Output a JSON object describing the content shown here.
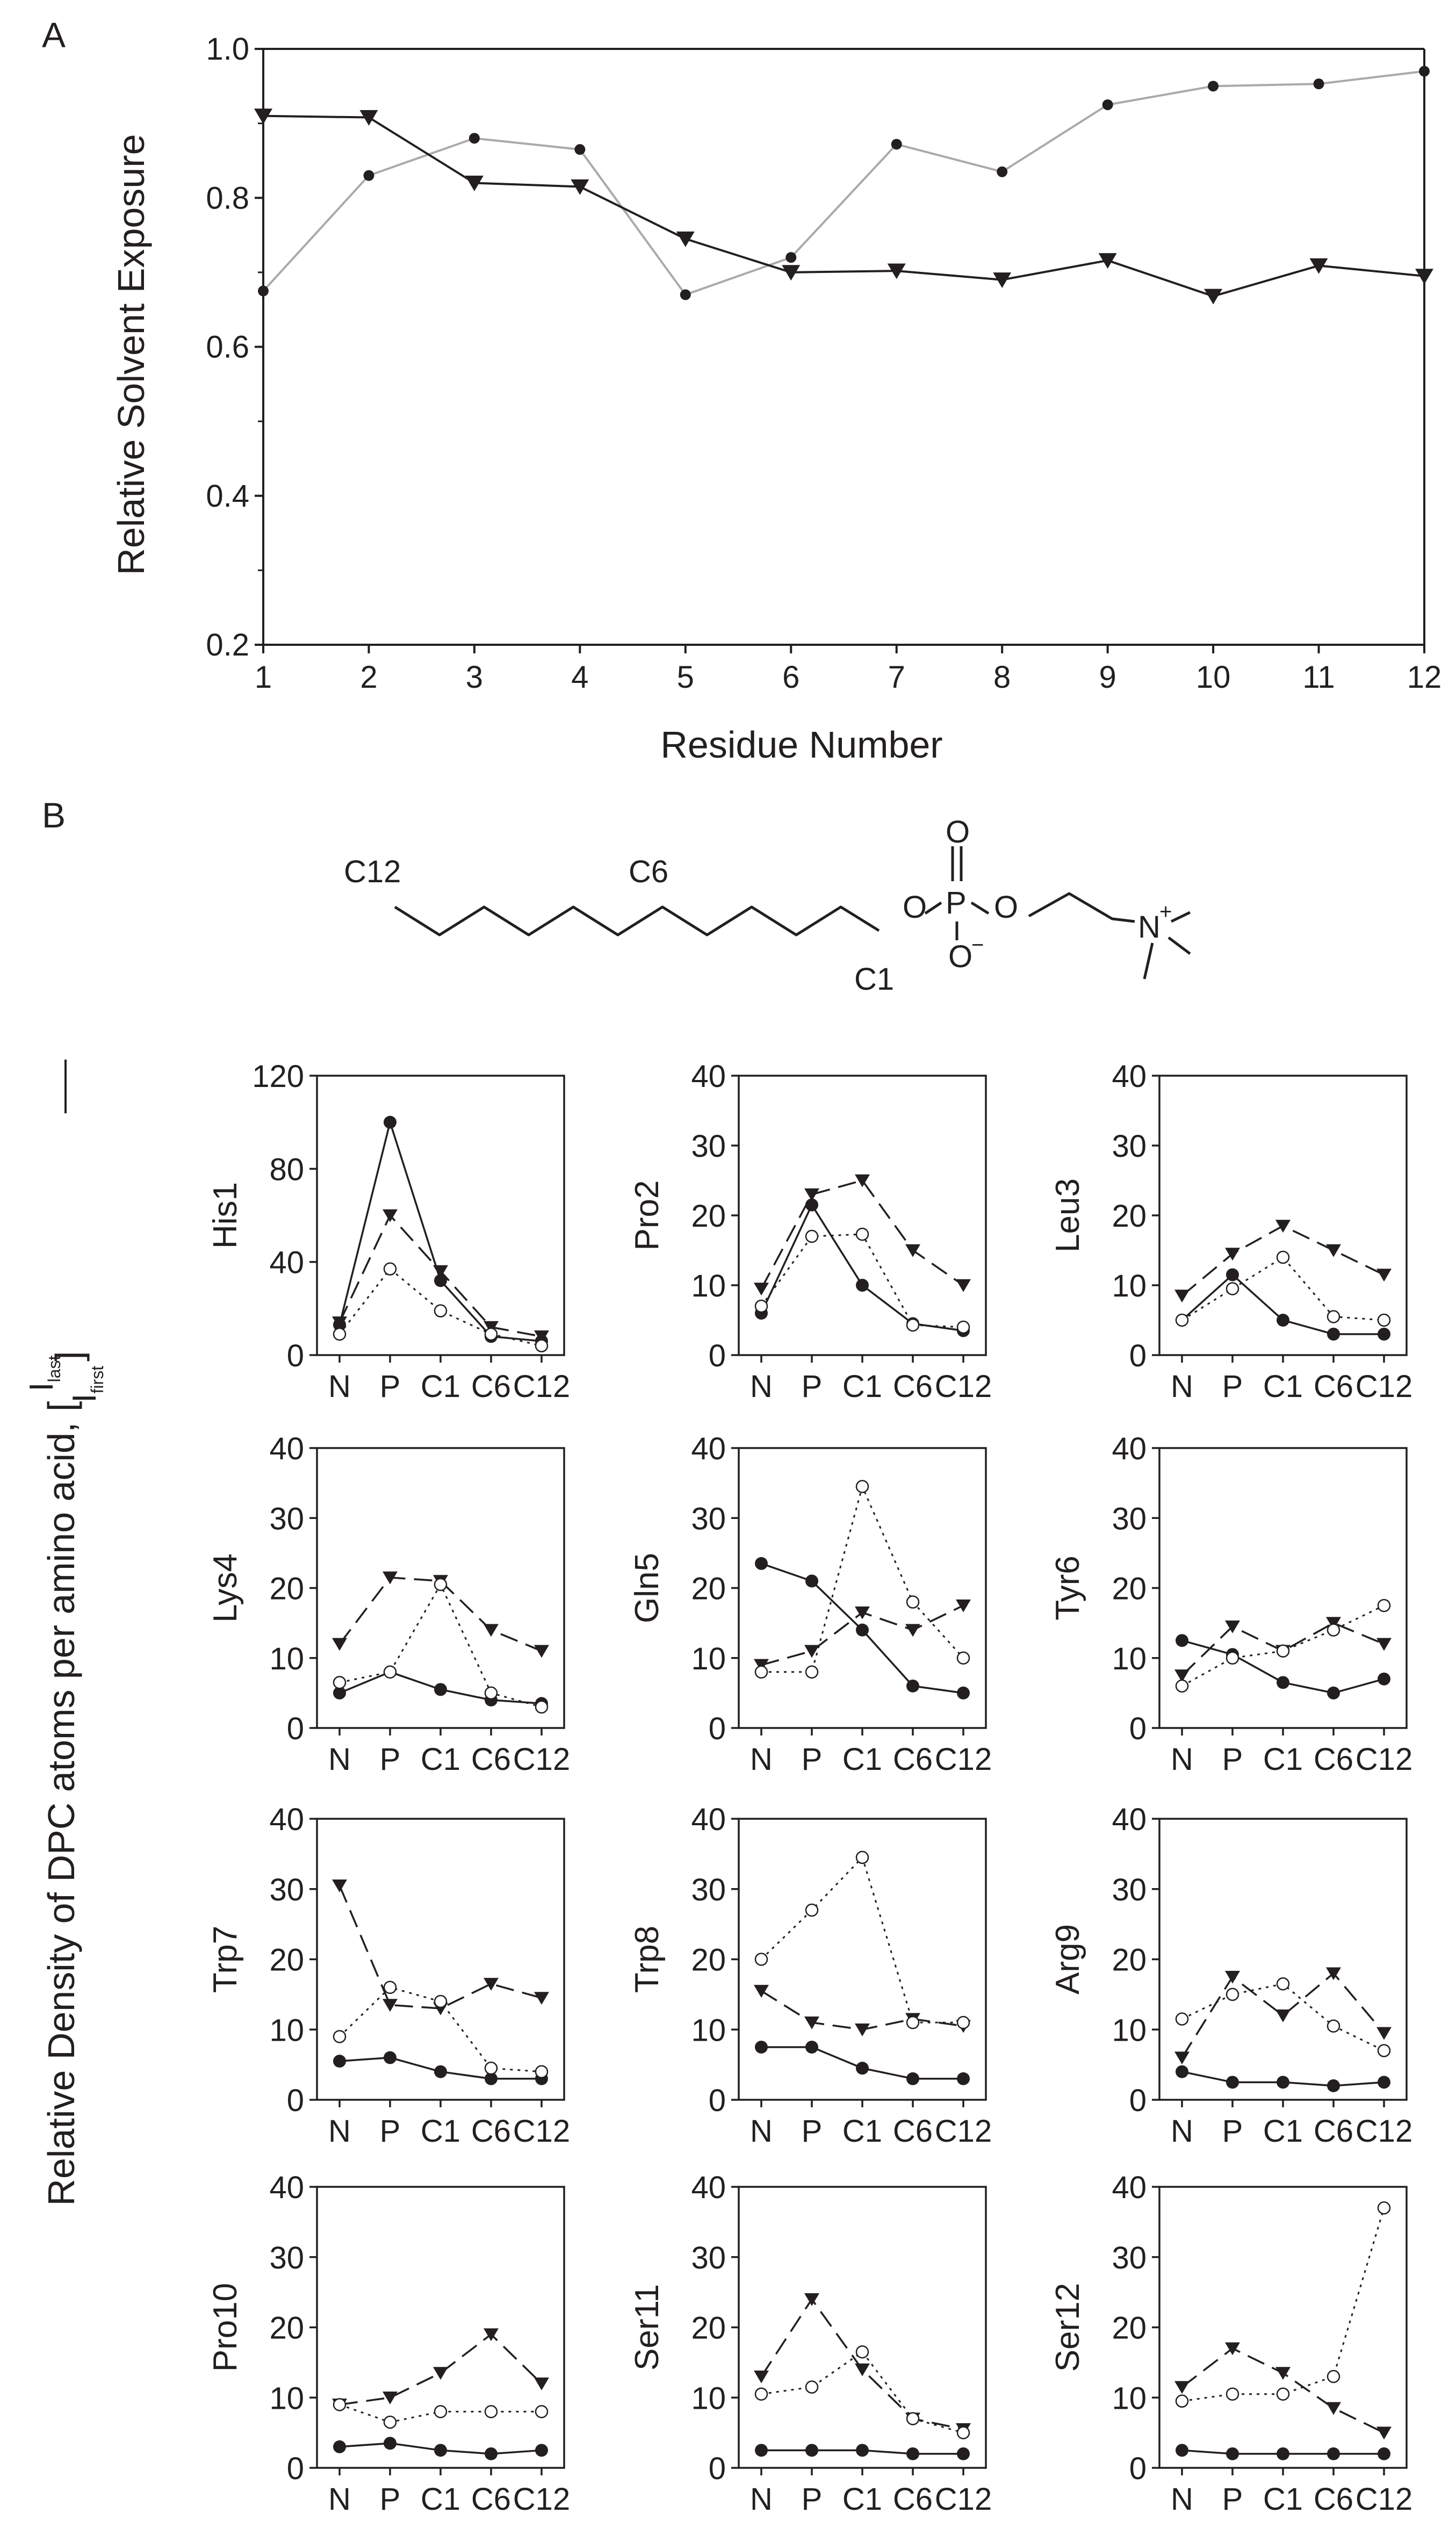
{
  "panel_a": {
    "label": "A",
    "chart_data": {
      "type": "line",
      "title": "",
      "xlabel": "Residue Number",
      "ylabel": "Relative Solvent Exposure",
      "xlim": [
        1,
        12
      ],
      "ylim": [
        0.2,
        1.0
      ],
      "yticks": [
        0.2,
        0.4,
        0.6,
        0.8,
        1.0
      ],
      "ytick_labels": [
        "0.2",
        "0.4",
        "0.6",
        "0.8",
        "1.0"
      ],
      "x": [
        1,
        2,
        3,
        4,
        5,
        6,
        7,
        8,
        9,
        10,
        11,
        12
      ],
      "x_labels": [
        "1",
        "2",
        "3",
        "4",
        "5",
        "6",
        "7",
        "8",
        "9",
        "10",
        "11",
        "12"
      ],
      "series": [
        {
          "name": "gray circles",
          "marker": "circle",
          "color": "#aaaaaa",
          "values": [
            0.675,
            0.83,
            0.88,
            0.865,
            0.67,
            0.72,
            0.872,
            0.835,
            0.925,
            0.95,
            0.953,
            0.97
          ]
        },
        {
          "name": "black triangles",
          "marker": "triangle",
          "color": "#231f20",
          "values": [
            0.91,
            0.908,
            0.82,
            0.815,
            0.745,
            0.7,
            0.702,
            0.69,
            0.716,
            0.668,
            0.709,
            0.695
          ]
        }
      ]
    }
  },
  "panel_b": {
    "label": "B",
    "molecule": {
      "labels": {
        "c12": "C12",
        "c6": "C6",
        "c1": "C1",
        "o": "O",
        "p": "P",
        "n": "N",
        "plus": "+",
        "minus": "−"
      }
    },
    "y_axis_label": "Relative Density of DPC atoms per amino acid, [",
    "fraction": {
      "numerator_base": "I",
      "numerator_sub": "last",
      "denominator_base": "I",
      "denominator_sub": "first",
      "close": "]"
    },
    "chart_data": [
      {
        "type": "line",
        "title": "His1",
        "categories": [
          "N",
          "P",
          "C1",
          "C6",
          "C12"
        ],
        "ylim": [
          0,
          120
        ],
        "ytick_labels": [
          "0",
          "40",
          "80",
          "120"
        ],
        "series": [
          {
            "name": "filled circles",
            "marker": "filled-circle",
            "line": "solid",
            "values": [
              13,
              100,
              32,
              8,
              6
            ]
          },
          {
            "name": "triangles",
            "marker": "triangle",
            "line": "dashed",
            "values": [
              14,
              60,
              36,
              12,
              8
            ]
          },
          {
            "name": "open circles",
            "marker": "open-circle",
            "line": "dotted",
            "values": [
              9,
              37,
              19,
              9,
              4
            ]
          }
        ]
      },
      {
        "type": "line",
        "title": "Pro2",
        "categories": [
          "N",
          "P",
          "C1",
          "C6",
          "C12"
        ],
        "ylim": [
          0,
          40
        ],
        "ytick_labels": [
          "0",
          "10",
          "20",
          "30",
          "40"
        ],
        "series": [
          {
            "name": "filled circles",
            "marker": "filled-circle",
            "line": "solid",
            "values": [
              6,
              21.5,
              10,
              4.5,
              3.5
            ]
          },
          {
            "name": "triangles",
            "marker": "triangle",
            "line": "dashed",
            "values": [
              9.5,
              23,
              25,
              15,
              10
            ]
          },
          {
            "name": "open circles",
            "marker": "open-circle",
            "line": "dotted",
            "values": [
              7,
              17,
              17.3,
              4.3,
              4
            ]
          }
        ]
      },
      {
        "type": "line",
        "title": "Leu3",
        "categories": [
          "N",
          "P",
          "C1",
          "C6",
          "C12"
        ],
        "ylim": [
          0,
          40
        ],
        "ytick_labels": [
          "0",
          "10",
          "20",
          "30",
          "40"
        ],
        "series": [
          {
            "name": "filled circles",
            "marker": "filled-circle",
            "line": "solid",
            "values": [
              5,
              11.5,
              5,
              3,
              3
            ]
          },
          {
            "name": "triangles",
            "marker": "triangle",
            "line": "dashed",
            "values": [
              8.5,
              14.5,
              18.5,
              15,
              11.5
            ]
          },
          {
            "name": "open circles",
            "marker": "open-circle",
            "line": "dotted",
            "values": [
              5,
              9.5,
              14,
              5.5,
              5
            ]
          }
        ]
      },
      {
        "type": "line",
        "title": "Lys4",
        "categories": [
          "N",
          "P",
          "C1",
          "C6",
          "C12"
        ],
        "ylim": [
          0,
          40
        ],
        "ytick_labels": [
          "0",
          "10",
          "20",
          "30",
          "40"
        ],
        "series": [
          {
            "name": "filled circles",
            "marker": "filled-circle",
            "line": "solid",
            "values": [
              5,
              8,
              5.5,
              4,
              3.5
            ]
          },
          {
            "name": "triangles",
            "marker": "triangle",
            "line": "dashed",
            "values": [
              12,
              21.5,
              21,
              14,
              11
            ]
          },
          {
            "name": "open circles",
            "marker": "open-circle",
            "line": "dotted",
            "values": [
              6.5,
              8,
              20.5,
              5,
              3
            ]
          }
        ]
      },
      {
        "type": "line",
        "title": "Gln5",
        "categories": [
          "N",
          "P",
          "C1",
          "C6",
          "C12"
        ],
        "ylim": [
          0,
          40
        ],
        "ytick_labels": [
          "0",
          "10",
          "20",
          "30",
          "40"
        ],
        "series": [
          {
            "name": "filled circles",
            "marker": "filled-circle",
            "line": "solid",
            "values": [
              23.5,
              21,
              14,
              6,
              5
            ]
          },
          {
            "name": "triangles",
            "marker": "triangle",
            "line": "dashed",
            "values": [
              9,
              11,
              16.5,
              14,
              17.5
            ]
          },
          {
            "name": "open circles",
            "marker": "open-circle",
            "line": "dotted",
            "values": [
              8,
              8,
              34.5,
              18,
              10
            ]
          }
        ]
      },
      {
        "type": "line",
        "title": "Tyr6",
        "categories": [
          "N",
          "P",
          "C1",
          "C6",
          "C12"
        ],
        "ylim": [
          0,
          40
        ],
        "ytick_labels": [
          "0",
          "10",
          "20",
          "30",
          "40"
        ],
        "series": [
          {
            "name": "filled circles",
            "marker": "filled-circle",
            "line": "solid",
            "values": [
              12.5,
              10.5,
              6.5,
              5,
              7
            ]
          },
          {
            "name": "triangles",
            "marker": "triangle",
            "line": "dashed",
            "values": [
              7.5,
              14.5,
              11,
              15,
              12
            ]
          },
          {
            "name": "open circles",
            "marker": "open-circle",
            "line": "dotted",
            "values": [
              6,
              10,
              11,
              14,
              17.5
            ]
          }
        ]
      },
      {
        "type": "line",
        "title": "Trp7",
        "categories": [
          "N",
          "P",
          "C1",
          "C6",
          "C12"
        ],
        "ylim": [
          0,
          40
        ],
        "ytick_labels": [
          "0",
          "10",
          "20",
          "30",
          "40"
        ],
        "series": [
          {
            "name": "filled circles",
            "marker": "filled-circle",
            "line": "solid",
            "values": [
              5.5,
              6,
              4,
              3,
              3
            ]
          },
          {
            "name": "triangles",
            "marker": "triangle",
            "line": "dashed",
            "values": [
              30.5,
              13.5,
              13,
              16.5,
              14.5
            ]
          },
          {
            "name": "open circles",
            "marker": "open-circle",
            "line": "dotted",
            "values": [
              9,
              16,
              14,
              4.5,
              4
            ]
          }
        ]
      },
      {
        "type": "line",
        "title": "Trp8",
        "categories": [
          "N",
          "P",
          "C1",
          "C6",
          "C12"
        ],
        "ylim": [
          0,
          40
        ],
        "ytick_labels": [
          "0",
          "10",
          "20",
          "30",
          "40"
        ],
        "series": [
          {
            "name": "filled circles",
            "marker": "filled-circle",
            "line": "solid",
            "values": [
              7.5,
              7.5,
              4.5,
              3,
              3
            ]
          },
          {
            "name": "triangles",
            "marker": "triangle",
            "line": "dashed",
            "values": [
              15.5,
              11,
              10,
              11.5,
              10.5
            ]
          },
          {
            "name": "open circles",
            "marker": "open-circle",
            "line": "dotted",
            "values": [
              20,
              27,
              34.5,
              11,
              11
            ]
          }
        ]
      },
      {
        "type": "line",
        "title": "Arg9",
        "categories": [
          "N",
          "P",
          "C1",
          "C6",
          "C12"
        ],
        "ylim": [
          0,
          40
        ],
        "ytick_labels": [
          "0",
          "10",
          "20",
          "30",
          "40"
        ],
        "series": [
          {
            "name": "filled circles",
            "marker": "filled-circle",
            "line": "solid",
            "values": [
              4,
              2.5,
              2.5,
              2,
              2.5
            ]
          },
          {
            "name": "triangles",
            "marker": "triangle",
            "line": "dashed",
            "values": [
              6,
              17.5,
              12,
              18,
              9.5
            ]
          },
          {
            "name": "open circles",
            "marker": "open-circle",
            "line": "dotted",
            "values": [
              11.5,
              15,
              16.5,
              10.5,
              7
            ]
          }
        ]
      },
      {
        "type": "line",
        "title": "Pro10",
        "categories": [
          "N",
          "P",
          "C1",
          "C6",
          "C12"
        ],
        "ylim": [
          0,
          40
        ],
        "ytick_labels": [
          "0",
          "10",
          "20",
          "30",
          "40"
        ],
        "series": [
          {
            "name": "filled circles",
            "marker": "filled-circle",
            "line": "solid",
            "values": [
              3,
              3.5,
              2.5,
              2,
              2.5
            ]
          },
          {
            "name": "triangles",
            "marker": "triangle",
            "line": "dashed",
            "values": [
              9,
              10,
              13.5,
              19,
              12
            ]
          },
          {
            "name": "open circles",
            "marker": "open-circle",
            "line": "dotted",
            "values": [
              9,
              6.5,
              8,
              8,
              8
            ]
          }
        ]
      },
      {
        "type": "line",
        "title": "Ser11",
        "categories": [
          "N",
          "P",
          "C1",
          "C6",
          "C12"
        ],
        "ylim": [
          0,
          40
        ],
        "ytick_labels": [
          "0",
          "10",
          "20",
          "30",
          "40"
        ],
        "series": [
          {
            "name": "filled circles",
            "marker": "filled-circle",
            "line": "solid",
            "values": [
              2.5,
              2.5,
              2.5,
              2,
              2
            ]
          },
          {
            "name": "triangles",
            "marker": "triangle",
            "line": "dashed",
            "values": [
              13,
              24,
              14,
              7,
              5.5
            ]
          },
          {
            "name": "open circles",
            "marker": "open-circle",
            "line": "dotted",
            "values": [
              10.5,
              11.5,
              16.5,
              7,
              5
            ]
          }
        ]
      },
      {
        "type": "line",
        "title": "Ser12",
        "categories": [
          "N",
          "P",
          "C1",
          "C6",
          "C12"
        ],
        "ylim": [
          0,
          40
        ],
        "ytick_labels": [
          "0",
          "10",
          "20",
          "30",
          "40"
        ],
        "series": [
          {
            "name": "filled circles",
            "marker": "filled-circle",
            "line": "solid",
            "values": [
              2.5,
              2,
              2,
              2,
              2
            ]
          },
          {
            "name": "triangles",
            "marker": "triangle",
            "line": "dashed",
            "values": [
              11.5,
              17,
              13.5,
              8.5,
              5
            ]
          },
          {
            "name": "open circles",
            "marker": "open-circle",
            "line": "dotted",
            "values": [
              9.5,
              10.5,
              10.5,
              13,
              37
            ]
          }
        ]
      }
    ]
  }
}
